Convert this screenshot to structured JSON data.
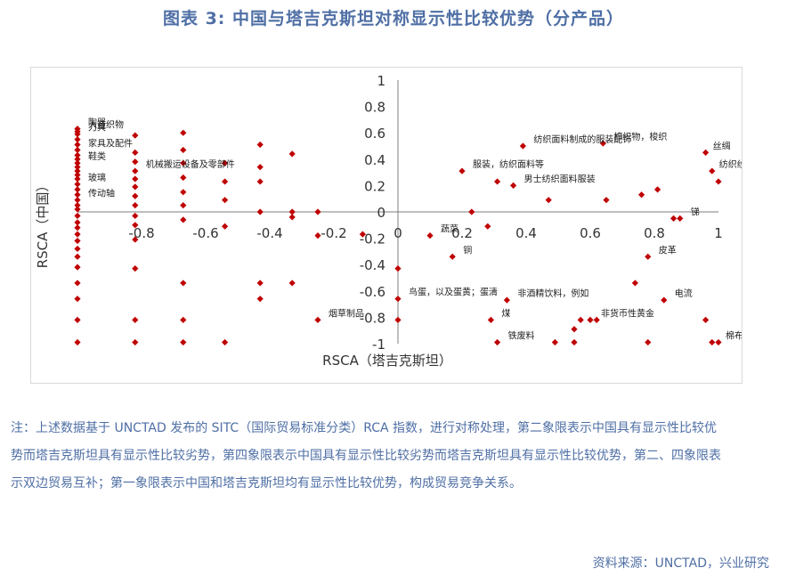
{
  "title": "图表 3:    中国与塔吉克斯坦对称显示性比较优势（分产品）",
  "chart_data": {
    "type": "scatter",
    "title": "",
    "xlabel": "RSCA（塔吉克斯坦）",
    "ylabel": "RSCA（中国）",
    "xlim": [
      -1,
      1
    ],
    "ylim": [
      -1,
      1
    ],
    "x_ticks": [
      "-0.8",
      "-0.6",
      "-0.4",
      "-0.2",
      "0",
      "0.2",
      "0.4",
      "0.6",
      "0.8",
      "1"
    ],
    "y_ticks": [
      "1",
      "0.8",
      "0.6",
      "0.4",
      "0.2",
      "0",
      "-0.2",
      "-0.4",
      "-0.6",
      "-0.8",
      "-1"
    ],
    "marker_color": "#c00000",
    "grid": false,
    "points": [
      [
        -1,
        0.63
      ],
      [
        -1,
        0.61
      ],
      [
        -1,
        0.59
      ],
      [
        -1,
        0.55
      ],
      [
        -1,
        0.51
      ],
      [
        -1,
        0.47
      ],
      [
        -1,
        0.43
      ],
      [
        -1,
        0.4
      ],
      [
        -1,
        0.37
      ],
      [
        -1,
        0.34
      ],
      [
        -1,
        0.31
      ],
      [
        -1,
        0.28
      ],
      [
        -1,
        0.25
      ],
      [
        -1,
        0.21
      ],
      [
        -1,
        0.17
      ],
      [
        -1,
        0.13
      ],
      [
        -1,
        0.09
      ],
      [
        -1,
        0.05
      ],
      [
        -1,
        0.02
      ],
      [
        -1,
        -0.03
      ],
      [
        -1,
        -0.08
      ],
      [
        -1,
        -0.12
      ],
      [
        -1,
        -0.17
      ],
      [
        -1,
        -0.22
      ],
      [
        -1,
        -0.28
      ],
      [
        -1,
        -0.34
      ],
      [
        -1,
        -0.42
      ],
      [
        -1,
        -0.54
      ],
      [
        -1,
        -0.66
      ],
      [
        -1,
        -0.82
      ],
      [
        -1,
        -0.99
      ],
      [
        -0.82,
        0.58
      ],
      [
        -0.82,
        0.45
      ],
      [
        -0.82,
        0.38
      ],
      [
        -0.82,
        0.31
      ],
      [
        -0.82,
        0.25
      ],
      [
        -0.82,
        0.19
      ],
      [
        -0.82,
        0.12
      ],
      [
        -0.82,
        0.05
      ],
      [
        -0.82,
        -0.03
      ],
      [
        -0.82,
        -0.1
      ],
      [
        -0.82,
        -0.21
      ],
      [
        -0.82,
        -0.43
      ],
      [
        -0.82,
        -0.82
      ],
      [
        -0.82,
        -0.99
      ],
      [
        -0.67,
        0.6
      ],
      [
        -0.67,
        0.47
      ],
      [
        -0.67,
        0.37
      ],
      [
        -0.67,
        0.26
      ],
      [
        -0.67,
        0.15
      ],
      [
        -0.67,
        0.05
      ],
      [
        -0.67,
        -0.06
      ],
      [
        -0.67,
        -0.54
      ],
      [
        -0.67,
        -0.82
      ],
      [
        -0.67,
        -0.99
      ],
      [
        -0.54,
        0.37
      ],
      [
        -0.54,
        0.23
      ],
      [
        -0.54,
        0.09
      ],
      [
        -0.54,
        -0.11
      ],
      [
        -0.54,
        -0.99
      ],
      [
        -0.43,
        0.51
      ],
      [
        -0.43,
        0.34
      ],
      [
        -0.43,
        0.23
      ],
      [
        -0.43,
        0.0
      ],
      [
        -0.43,
        -0.54
      ],
      [
        -0.43,
        -0.66
      ],
      [
        -0.33,
        0.44
      ],
      [
        -0.33,
        0.0
      ],
      [
        -0.33,
        -0.04
      ],
      [
        -0.33,
        -0.54
      ],
      [
        -0.25,
        0.0
      ],
      [
        -0.25,
        -0.18
      ],
      [
        -0.25,
        -0.82
      ],
      [
        -0.11,
        -0.17
      ],
      [
        0.0,
        -0.43
      ],
      [
        0.0,
        -0.66
      ],
      [
        0.0,
        -0.82
      ],
      [
        0.1,
        -0.18
      ],
      [
        0.17,
        -0.34
      ],
      [
        0.2,
        0.31
      ],
      [
        0.23,
        0.0
      ],
      [
        0.28,
        -0.11
      ],
      [
        0.29,
        -0.82
      ],
      [
        0.31,
        0.23
      ],
      [
        0.31,
        -0.99
      ],
      [
        0.34,
        -0.67
      ],
      [
        0.36,
        0.2
      ],
      [
        0.39,
        0.5
      ],
      [
        0.47,
        0.09
      ],
      [
        0.49,
        -0.99
      ],
      [
        0.55,
        -0.89
      ],
      [
        0.55,
        -0.99
      ],
      [
        0.57,
        -0.82
      ],
      [
        0.6,
        -0.82
      ],
      [
        0.62,
        -0.82
      ],
      [
        0.64,
        0.52
      ],
      [
        0.65,
        0.09
      ],
      [
        0.74,
        -0.54
      ],
      [
        0.76,
        0.13
      ],
      [
        0.78,
        -0.34
      ],
      [
        0.78,
        -0.99
      ],
      [
        0.81,
        0.17
      ],
      [
        0.83,
        -0.67
      ],
      [
        0.86,
        -0.05
      ],
      [
        0.88,
        -0.05
      ],
      [
        0.96,
        0.45
      ],
      [
        0.96,
        -0.82
      ],
      [
        0.98,
        0.31
      ],
      [
        0.98,
        -0.99
      ],
      [
        1.0,
        0.23
      ],
      [
        1.0,
        -0.99
      ]
    ],
    "annotations": [
      {
        "text": "陶器",
        "x": -1,
        "y": 0.63
      },
      {
        "text": "人造织物",
        "x": -1,
        "y": 0.61
      },
      {
        "text": "刀具",
        "x": -1,
        "y": 0.59
      },
      {
        "text": "家具及配件",
        "x": -1,
        "y": 0.47
      },
      {
        "text": "鞋类",
        "x": -1,
        "y": 0.37
      },
      {
        "text": "玻璃",
        "x": -1,
        "y": 0.21
      },
      {
        "text": "传动轴",
        "x": -1,
        "y": 0.09
      },
      {
        "text": "机械搬运设备及零部件",
        "x": -0.82,
        "y": 0.31
      },
      {
        "text": "烟草制品",
        "x": -0.25,
        "y": -0.82
      },
      {
        "text": "纺织面料制成的服装配饰",
        "x": 0.39,
        "y": 0.5
      },
      {
        "text": "棉织物，梭织",
        "x": 0.64,
        "y": 0.52
      },
      {
        "text": "丝绸",
        "x": 0.96,
        "y": 0.45
      },
      {
        "text": "服装，纺织面料等",
        "x": 0.2,
        "y": 0.31
      },
      {
        "text": "纺织纱线",
        "x": 0.98,
        "y": 0.31
      },
      {
        "text": "男士纺织面料服装",
        "x": 0.36,
        "y": 0.2
      },
      {
        "text": "锑",
        "x": 0.88,
        "y": -0.05
      },
      {
        "text": "蔬菜",
        "x": 0.1,
        "y": -0.18
      },
      {
        "text": "铜",
        "x": 0.17,
        "y": -0.34
      },
      {
        "text": "皮革",
        "x": 0.78,
        "y": -0.34
      },
      {
        "text": "鸟蛋，以及蛋黄；蛋清",
        "x": 0.0,
        "y": -0.66
      },
      {
        "text": "非酒精饮料，例如",
        "x": 0.34,
        "y": -0.67
      },
      {
        "text": "电流",
        "x": 0.83,
        "y": -0.67
      },
      {
        "text": "煤",
        "x": 0.29,
        "y": -0.82
      },
      {
        "text": "非货币性黄金",
        "x": 0.6,
        "y": -0.82
      },
      {
        "text": "铁废料",
        "x": 0.31,
        "y": -0.99
      },
      {
        "text": "棉布",
        "x": 1.0,
        "y": -0.99
      }
    ]
  },
  "note": "注：上述数据基于 UNCTAD 发布的 SITC（国际贸易标准分类）RCA 指数，进行对称处理，第二象限表示中国具有显示性比较优势而塔吉克斯坦具有显示性比较劣势，第四象限表示中国具有显示性比较劣势而塔吉克斯坦具有显示性比较优势，第二、四象限表示双边贸易互补；第一象限表示中国和塔吉克斯坦均有显示性比较优势，构成贸易竞争关系。",
  "source": "资料来源：UNCTAD，兴业研究"
}
